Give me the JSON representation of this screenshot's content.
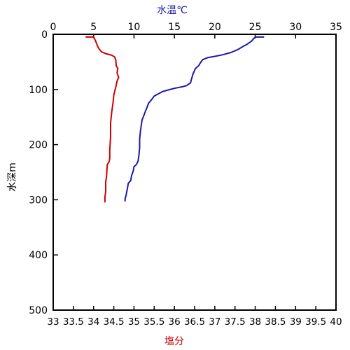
{
  "chart_data": {
    "type": "line",
    "top_axis": {
      "label": "水温℃",
      "label_color": "#1a1aa6",
      "range": [
        0,
        35
      ],
      "ticks": [
        "0",
        "5",
        "10",
        "15",
        "20",
        "25",
        "30",
        "35"
      ]
    },
    "bottom_axis": {
      "label": "塩分",
      "label_color": "#cc0000",
      "range": [
        33,
        40
      ],
      "ticks": [
        "33",
        "33.5",
        "34",
        "34.5",
        "35",
        "35.5",
        "36",
        "36.5",
        "37",
        "37.5",
        "38",
        "38.5",
        "39",
        "39.5",
        "40"
      ]
    },
    "y_axis": {
      "label": "水深m",
      "range": [
        0,
        500
      ],
      "inverted": true,
      "ticks": [
        "0",
        "100",
        "200",
        "300",
        "400",
        "500"
      ]
    },
    "grid": false,
    "series": [
      {
        "axis": "top",
        "color": "#1a1aa6",
        "points": [
          [
            26.1,
            5
          ],
          [
            25.0,
            5
          ],
          [
            24.8,
            8
          ],
          [
            24.5,
            13
          ],
          [
            24.0,
            18
          ],
          [
            23.5,
            22
          ],
          [
            22.8,
            28
          ],
          [
            22.0,
            33
          ],
          [
            21.0,
            37
          ],
          [
            20.0,
            40
          ],
          [
            19.2,
            42
          ],
          [
            18.5,
            46
          ],
          [
            18.2,
            52
          ],
          [
            18.0,
            57
          ],
          [
            17.6,
            62
          ],
          [
            17.3,
            72
          ],
          [
            17.1,
            82
          ],
          [
            17.0,
            88
          ],
          [
            16.5,
            93
          ],
          [
            16.0,
            95
          ],
          [
            15.0,
            98
          ],
          [
            14.2,
            101
          ],
          [
            13.5,
            104
          ],
          [
            13.0,
            108
          ],
          [
            12.5,
            112
          ],
          [
            12.2,
            118
          ],
          [
            11.8,
            125
          ],
          [
            11.6,
            133
          ],
          [
            11.4,
            140
          ],
          [
            11.2,
            148
          ],
          [
            11.0,
            155
          ],
          [
            10.9,
            165
          ],
          [
            10.8,
            175
          ],
          [
            10.7,
            190
          ],
          [
            10.7,
            205
          ],
          [
            10.6,
            220
          ],
          [
            10.5,
            230
          ],
          [
            10.3,
            236
          ],
          [
            10.0,
            240
          ],
          [
            9.9,
            248
          ],
          [
            9.7,
            256
          ],
          [
            9.6,
            265
          ],
          [
            9.3,
            270
          ],
          [
            9.2,
            278
          ],
          [
            9.1,
            286
          ],
          [
            9.0,
            293
          ],
          [
            8.9,
            298
          ],
          [
            8.9,
            303
          ]
        ]
      },
      {
        "axis": "bottom",
        "color": "#cc0000",
        "points": [
          [
            33.8,
            5
          ],
          [
            34.0,
            5
          ],
          [
            34.05,
            12
          ],
          [
            34.1,
            22
          ],
          [
            34.15,
            28
          ],
          [
            34.2,
            32
          ],
          [
            34.3,
            35
          ],
          [
            34.45,
            38
          ],
          [
            34.52,
            41
          ],
          [
            34.55,
            47
          ],
          [
            34.56,
            57
          ],
          [
            34.6,
            62
          ],
          [
            34.58,
            70
          ],
          [
            34.62,
            78
          ],
          [
            34.58,
            85
          ],
          [
            34.55,
            95
          ],
          [
            34.5,
            110
          ],
          [
            34.48,
            125
          ],
          [
            34.45,
            140
          ],
          [
            34.42,
            160
          ],
          [
            34.42,
            185
          ],
          [
            34.4,
            210
          ],
          [
            34.4,
            225
          ],
          [
            34.38,
            232
          ],
          [
            34.34,
            236
          ],
          [
            34.33,
            245
          ],
          [
            34.32,
            258
          ],
          [
            34.3,
            268
          ],
          [
            34.3,
            285
          ],
          [
            34.28,
            295
          ],
          [
            34.28,
            305
          ]
        ]
      }
    ]
  }
}
